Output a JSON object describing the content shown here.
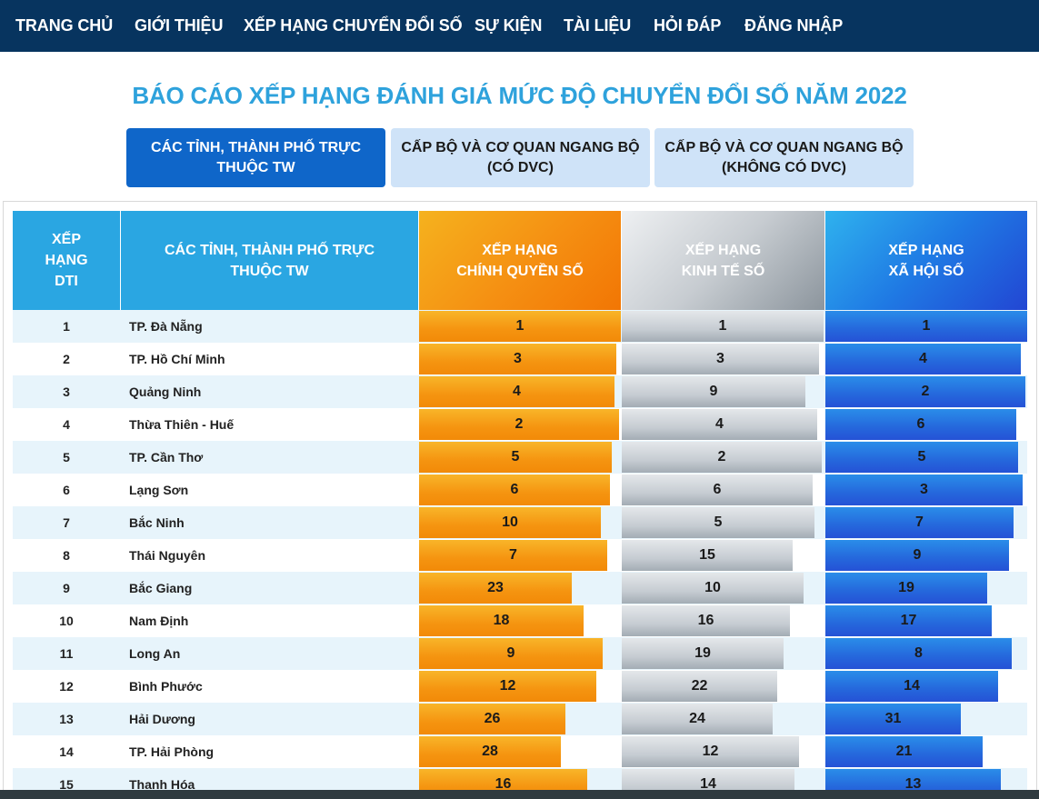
{
  "nav": {
    "items": [
      {
        "label": "TRANG CHỦ",
        "name": "nav-home"
      },
      {
        "label": "GIỚI THIỆU",
        "name": "nav-about"
      },
      {
        "label": "XẾP HẠNG CHUYỂN ĐỔI SỐ",
        "name": "nav-ranking"
      },
      {
        "label": "SỰ KIỆN",
        "name": "nav-events"
      },
      {
        "label": "TÀI LIỆU",
        "name": "nav-documents"
      },
      {
        "label": "HỎI ĐÁP",
        "name": "nav-faq"
      },
      {
        "label": "ĐĂNG NHẬP",
        "name": "nav-login"
      }
    ]
  },
  "page": {
    "title": "BÁO CÁO XẾP HẠNG ĐÁNH GIÁ MỨC ĐỘ CHUYỂN ĐỔI SỐ NĂM 2022"
  },
  "tabs": [
    {
      "line1": "CÁC TỈNH, THÀNH PHỐ TRỰC",
      "line2": "THUỘC TW",
      "active": true
    },
    {
      "line1": "CẤP BỘ VÀ CƠ QUAN NGANG BỘ",
      "line2": "(CÓ DVC)",
      "active": false
    },
    {
      "line1": "CẤP BỘ VÀ CƠ QUAN NGANG BỘ",
      "line2": "(KHÔNG CÓ DVC)",
      "active": false
    }
  ],
  "table": {
    "headers": {
      "rank": [
        "XẾP",
        "HẠNG",
        "DTI"
      ],
      "province": [
        "CÁC TỈNH, THÀNH PHỐ TRỰC",
        "THUỘC TW"
      ],
      "government": [
        "XẾP HẠNG",
        "CHÍNH QUYỀN SỐ"
      ],
      "economy": [
        "XẾP HẠNG",
        "KINH TẾ SỐ"
      ],
      "society": [
        "XẾP HẠNG",
        "XÃ HỘI SỐ"
      ]
    },
    "max_rank": 63,
    "rows": [
      {
        "rank": "1",
        "name": "TP. Đà Nẵng",
        "gov": 1,
        "eco": 1,
        "soc": 1
      },
      {
        "rank": "2",
        "name": "TP. Hồ Chí Minh",
        "gov": 3,
        "eco": 3,
        "soc": 4
      },
      {
        "rank": "3",
        "name": "Quảng Ninh",
        "gov": 4,
        "eco": 9,
        "soc": 2
      },
      {
        "rank": "4",
        "name": "Thừa Thiên - Huế",
        "gov": 2,
        "eco": 4,
        "soc": 6
      },
      {
        "rank": "5",
        "name": "TP. Cần Thơ",
        "gov": 5,
        "eco": 2,
        "soc": 5
      },
      {
        "rank": "6",
        "name": "Lạng Sơn",
        "gov": 6,
        "eco": 6,
        "soc": 3
      },
      {
        "rank": "7",
        "name": "Bắc Ninh",
        "gov": 10,
        "eco": 5,
        "soc": 7
      },
      {
        "rank": "8",
        "name": "Thái Nguyên",
        "gov": 7,
        "eco": 15,
        "soc": 9
      },
      {
        "rank": "9",
        "name": "Bắc Giang",
        "gov": 23,
        "eco": 10,
        "soc": 19
      },
      {
        "rank": "10",
        "name": "Nam Định",
        "gov": 18,
        "eco": 16,
        "soc": 17
      },
      {
        "rank": "11",
        "name": "Long An",
        "gov": 9,
        "eco": 19,
        "soc": 8
      },
      {
        "rank": "12",
        "name": "Bình Phước",
        "gov": 12,
        "eco": 22,
        "soc": 14
      },
      {
        "rank": "13",
        "name": "Hải Dương",
        "gov": 26,
        "eco": 24,
        "soc": 31
      },
      {
        "rank": "14",
        "name": "TP. Hải Phòng",
        "gov": 28,
        "eco": 12,
        "soc": 21
      },
      {
        "rank": "15",
        "name": "Thanh Hóa",
        "gov": 16,
        "eco": 14,
        "soc": 13
      }
    ]
  }
}
